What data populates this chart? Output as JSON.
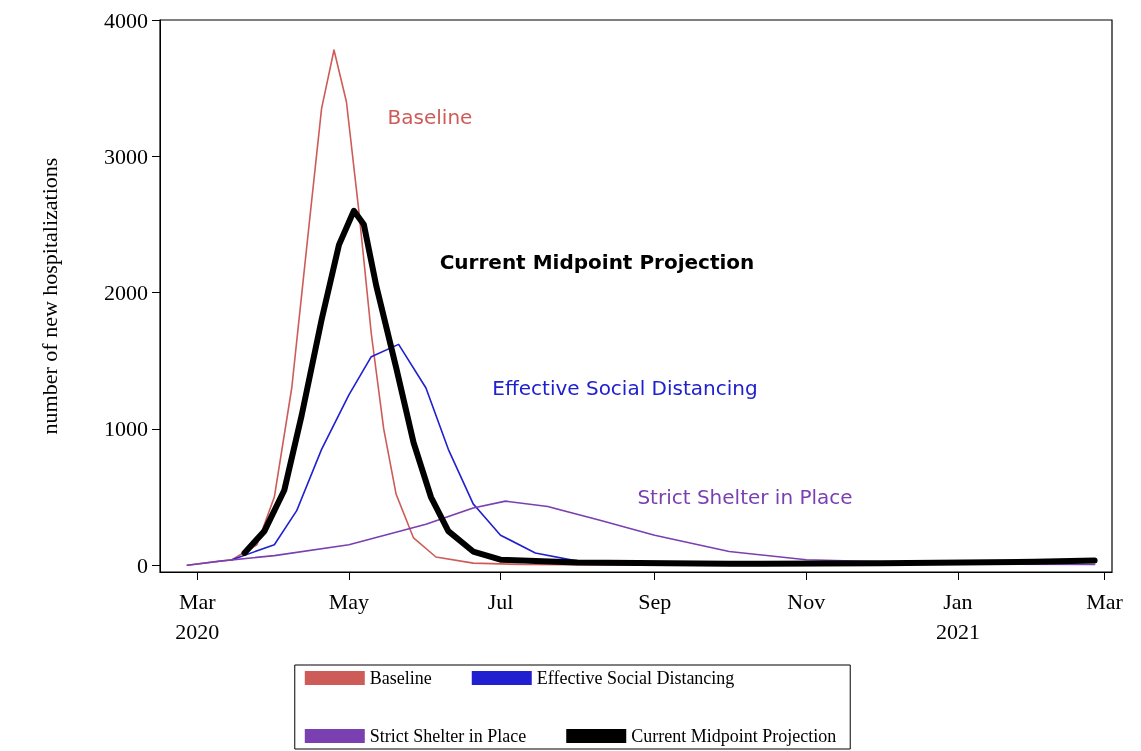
{
  "chart_data": {
    "type": "line",
    "ylabel": "number of new hospitalizations",
    "xlim": [
      "2020-02-15",
      "2021-03-04"
    ],
    "xticks": [
      {
        "value": "2020-03-01",
        "label": "Mar\n2020"
      },
      {
        "value": "2020-05-01",
        "label": "May"
      },
      {
        "value": "2020-07-01",
        "label": "Jul"
      },
      {
        "value": "2020-09-01",
        "label": "Sep"
      },
      {
        "value": "2020-11-01",
        "label": "Nov"
      },
      {
        "value": "2021-01-01",
        "label": "Jan\n2021"
      },
      {
        "value": "2021-03-01",
        "label": "Mar"
      }
    ],
    "ylim": [
      -50,
      4000
    ],
    "yticks": [
      0,
      1000,
      2000,
      3000,
      4000
    ],
    "grid": false,
    "legend": "bottom",
    "marker": "none",
    "line_style": "solid",
    "series": [
      {
        "name": "Baseline",
        "color": "#cd5c58",
        "x": [
          "2020-02-26",
          "2020-03-15",
          "2020-03-25",
          "2020-04-01",
          "2020-04-08",
          "2020-04-15",
          "2020-04-20",
          "2020-04-25",
          "2020-04-30",
          "2020-05-05",
          "2020-05-10",
          "2020-05-15",
          "2020-05-20",
          "2020-05-27",
          "2020-06-05",
          "2020-06-20",
          "2020-07-10",
          "2020-09-01"
        ],
        "values": [
          0,
          40,
          150,
          500,
          1300,
          2500,
          3350,
          3780,
          3400,
          2600,
          1700,
          1000,
          520,
          200,
          60,
          15,
          5,
          0
        ]
      },
      {
        "name": "Effective Social Distancing",
        "color": "#2020d0",
        "x": [
          "2020-03-15",
          "2020-04-01",
          "2020-04-10",
          "2020-04-20",
          "2020-05-01",
          "2020-05-10",
          "2020-05-21",
          "2020-06-01",
          "2020-06-10",
          "2020-06-20",
          "2020-07-01",
          "2020-07-15",
          "2020-08-01"
        ],
        "values": [
          40,
          150,
          400,
          850,
          1250,
          1530,
          1620,
          1300,
          850,
          450,
          220,
          90,
          30
        ]
      },
      {
        "name": "Strict Shelter in Place",
        "color": "#7a3fb0",
        "x": [
          "2020-02-26",
          "2020-03-10",
          "2020-04-01",
          "2020-05-01",
          "2020-06-01",
          "2020-06-20",
          "2020-07-03",
          "2020-07-20",
          "2020-08-10",
          "2020-09-01",
          "2020-10-01",
          "2020-11-01",
          "2021-01-01",
          "2021-02-25"
        ],
        "values": [
          0,
          30,
          70,
          150,
          300,
          420,
          470,
          430,
          330,
          220,
          100,
          40,
          10,
          5
        ]
      },
      {
        "name": "Current Midpoint Projection",
        "color": "#000000",
        "x": [
          "2020-03-20",
          "2020-03-28",
          "2020-04-05",
          "2020-04-12",
          "2020-04-20",
          "2020-04-27",
          "2020-05-03",
          "2020-05-07",
          "2020-05-12",
          "2020-05-20",
          "2020-05-27",
          "2020-06-03",
          "2020-06-10",
          "2020-06-20",
          "2020-07-01",
          "2020-08-01",
          "2020-10-01",
          "2020-12-01",
          "2021-02-01",
          "2021-02-25"
        ],
        "values": [
          90,
          250,
          550,
          1100,
          1800,
          2350,
          2600,
          2500,
          2050,
          1450,
          900,
          500,
          250,
          100,
          40,
          20,
          10,
          15,
          25,
          35
        ]
      }
    ],
    "annotations": [
      "Baseline",
      "Effective Social Distancing",
      "Strict Shelter in Place",
      "Current Midpoint Projection"
    ]
  }
}
